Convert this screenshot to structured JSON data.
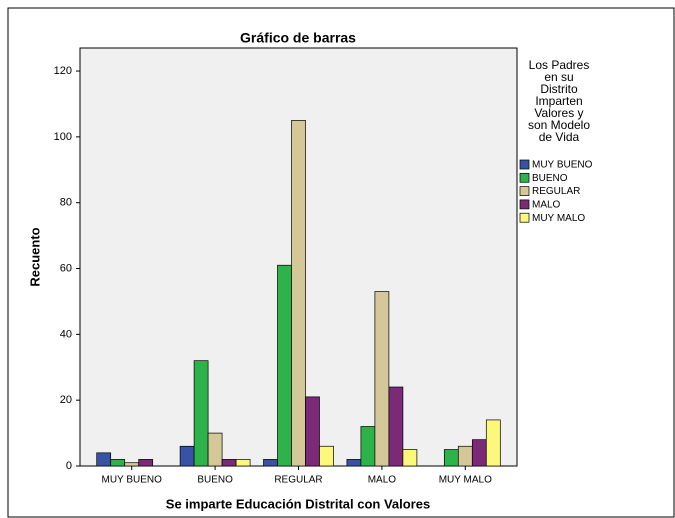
{
  "chart_data": {
    "type": "bar",
    "title": "Gráfico de barras",
    "x_label": "Se imparte Educación Distrital con Valores",
    "y_label": "Recuento",
    "legend_title": [
      "Los Padres",
      "en su",
      "Distrito",
      "Imparten",
      "Valores y",
      "son Modelo",
      "de Vida"
    ],
    "categories": [
      "MUY BUENO",
      "BUENO",
      "REGULAR",
      "MALO",
      "MUY MALO"
    ],
    "series": [
      {
        "name": "MUY BUENO",
        "color": "#3953a4",
        "values": [
          4,
          6,
          2,
          2,
          0
        ]
      },
      {
        "name": "BUENO",
        "color": "#2db34a",
        "values": [
          2,
          32,
          61,
          12,
          5
        ]
      },
      {
        "name": "REGULAR",
        "color": "#d4c898",
        "values": [
          1,
          10,
          105,
          53,
          6
        ]
      },
      {
        "name": "MALO",
        "color": "#7b2a77",
        "values": [
          2,
          2,
          21,
          24,
          8
        ]
      },
      {
        "name": "MUY MALO",
        "color": "#fbf87c",
        "values": [
          0,
          2,
          6,
          5,
          14
        ]
      }
    ],
    "ylim": [
      0,
      127
    ],
    "yticks": [
      0,
      20,
      40,
      60,
      80,
      100,
      120
    ],
    "grid": false,
    "legend": "right"
  }
}
